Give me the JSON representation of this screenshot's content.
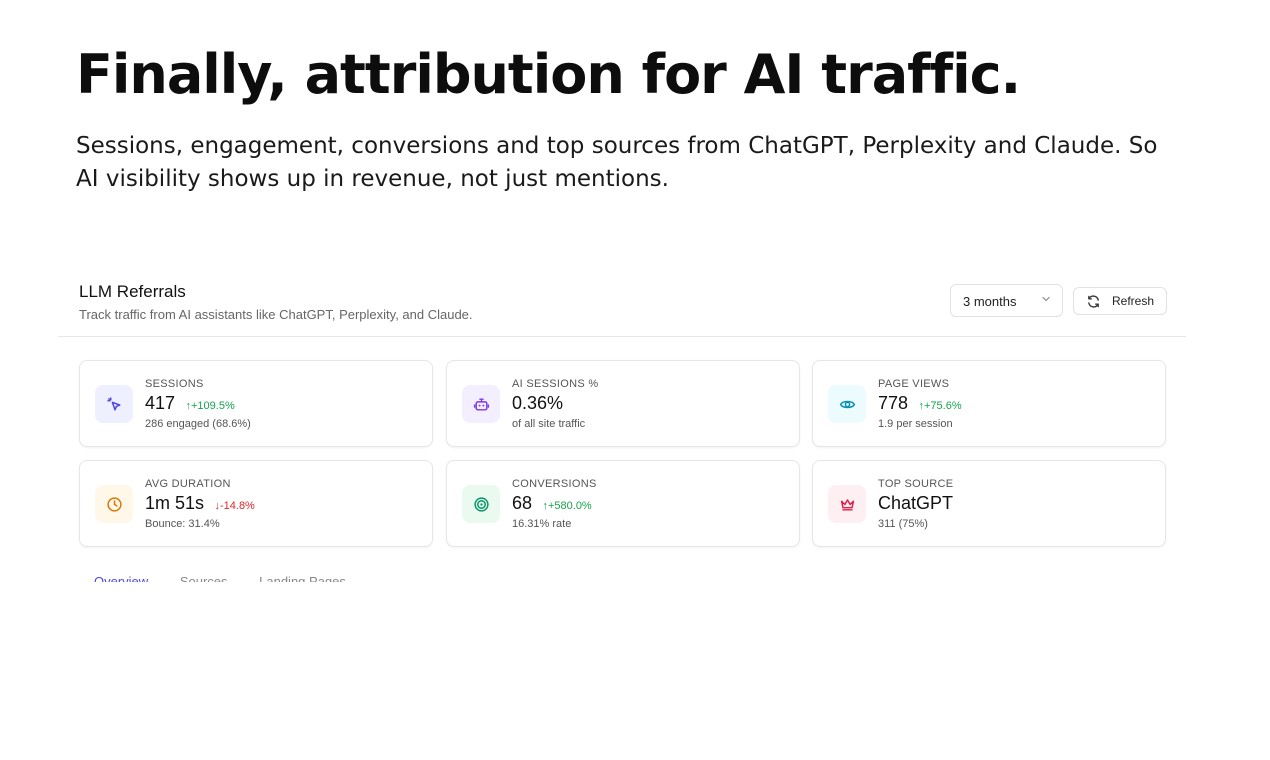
{
  "hero": {
    "title": "Finally, attribution for AI traffic.",
    "subtitle": "Sessions, engagement, conversions and top sources from ChatGPT, Perplexity and Claude. So AI visibility shows up in revenue, not just mentions."
  },
  "panel": {
    "title": "LLM Referrals",
    "description": "Track traffic from AI assistants like ChatGPT, Perplexity, and Claude.",
    "range_select": {
      "value": "3 months",
      "icon": "chevron-down-icon"
    },
    "refresh": {
      "label": "Refresh",
      "icon": "refresh-icon"
    }
  },
  "cards": [
    {
      "label": "SESSIONS",
      "value": "417",
      "delta": "↑+109.5%",
      "sub": "286 engaged (68.6%)",
      "icon": "cursor-click-icon",
      "tint": "#eef0ff",
      "color": "#4f46e5"
    },
    {
      "label": "AI SESSIONS %",
      "value": "0.36%",
      "delta": "",
      "sub": "of all site traffic",
      "icon": "robot-icon",
      "tint": "#f4efff",
      "color": "#7c3aed"
    },
    {
      "label": "PAGE VIEWS",
      "value": "778",
      "delta": "↑+75.6%",
      "sub": "1.9 per session",
      "icon": "eye-icon",
      "tint": "#ecfbfd",
      "color": "#0891b2"
    },
    {
      "label": "AVG DURATION",
      "value": "1m 51s",
      "delta": "↓-14.8%",
      "sub": "Bounce: 31.4%",
      "icon": "clock-icon",
      "tint": "#fff8e8",
      "color": "#d97706"
    },
    {
      "label": "CONVERSIONS",
      "value": "68",
      "delta": "↑+580.0%",
      "sub": "16.31% rate",
      "icon": "target-icon",
      "tint": "#eafaf1",
      "color": "#059669"
    },
    {
      "label": "TOP SOURCE",
      "value": "ChatGPT",
      "delta": "",
      "sub": "311 (75%)",
      "icon": "crown-icon",
      "tint": "#fdeff2",
      "color": "#e11d48"
    }
  ],
  "tabs": [
    {
      "label": "Overview",
      "active": true
    },
    {
      "label": "Sources",
      "active": false
    },
    {
      "label": "Landing Pages",
      "active": false
    }
  ]
}
